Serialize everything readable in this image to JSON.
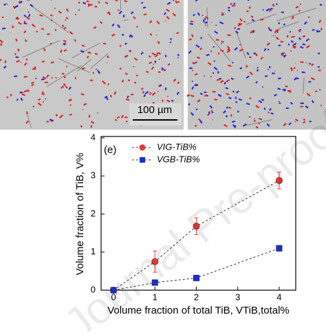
{
  "micrograph": {
    "scale_bar": "100 µm"
  },
  "watermark": "Journal Pre-proof",
  "chart_data": {
    "type": "scatter",
    "panel_label": "(e)",
    "xlabel": "Volume fraction of total TiB, VTiB,total%",
    "ylabel": "Volume fraction of TiB, V%",
    "xlim": [
      -0.3,
      4.4
    ],
    "ylim": [
      0,
      4
    ],
    "xticks": [
      0,
      1,
      2,
      3,
      4
    ],
    "yticks": [
      0,
      1,
      2,
      3,
      4
    ],
    "legend": "upper left",
    "series": [
      {
        "name": "VIG-TiB%",
        "color": "#e03c3c",
        "marker": "circle",
        "x": [
          0,
          1,
          2,
          4
        ],
        "values": [
          0,
          0.75,
          1.68,
          2.88
        ],
        "errors": [
          null,
          0.28,
          0.22,
          0.22
        ]
      },
      {
        "name": "VGB-TiB%",
        "color": "#1f2fd0",
        "marker": "square",
        "x": [
          0,
          1,
          2,
          4
        ],
        "values": [
          0,
          0.2,
          0.32,
          1.1
        ],
        "errors": [
          null,
          null,
          null,
          0.07
        ]
      }
    ]
  }
}
